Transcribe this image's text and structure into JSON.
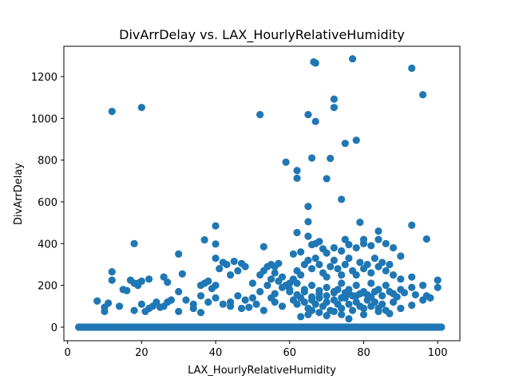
{
  "chart_data": {
    "type": "scatter",
    "title": "DivArrDelay vs. LAX_HourlyRelativeHumidity",
    "xlabel": "LAX_HourlyRelativeHumidity",
    "ylabel": "DivArrDelay",
    "xlim": [
      -1,
      106
    ],
    "ylim": [
      -65,
      1345
    ],
    "xticks": [
      0,
      20,
      40,
      60,
      80,
      100
    ],
    "yticks": [
      0,
      200,
      400,
      600,
      800,
      1000,
      1200
    ],
    "marker_color": "#1f77b4",
    "grid": false,
    "legend": "none",
    "baseline_band": {
      "x_from": 3,
      "x_to": 101,
      "y": 0
    },
    "points": [
      [
        12,
        1033
      ],
      [
        20,
        1052
      ],
      [
        52,
        1018
      ],
      [
        65,
        1018
      ],
      [
        67,
        985
      ],
      [
        66.5,
        1270
      ],
      [
        67,
        1265
      ],
      [
        77,
        1285
      ],
      [
        72,
        1092
      ],
      [
        72,
        1052
      ],
      [
        93,
        1240
      ],
      [
        96,
        1113
      ],
      [
        59,
        790
      ],
      [
        62,
        750
      ],
      [
        62,
        713
      ],
      [
        66,
        810
      ],
      [
        71,
        808
      ],
      [
        70,
        711
      ],
      [
        75,
        880
      ],
      [
        78,
        895
      ],
      [
        74,
        612
      ],
      [
        65,
        578
      ],
      [
        79,
        502
      ],
      [
        40,
        485
      ],
      [
        62,
        453
      ],
      [
        65,
        505
      ],
      [
        65,
        435
      ],
      [
        68,
        410
      ],
      [
        75,
        420
      ],
      [
        80,
        420
      ],
      [
        84,
        460
      ],
      [
        93,
        488
      ],
      [
        97,
        422
      ],
      [
        18,
        400
      ],
      [
        37,
        418
      ],
      [
        40,
        398
      ],
      [
        30,
        350
      ],
      [
        40,
        330
      ],
      [
        42,
        310
      ],
      [
        45,
        315
      ],
      [
        53,
        385
      ],
      [
        55,
        300
      ],
      [
        56,
        290
      ],
      [
        61,
        350
      ],
      [
        63,
        360
      ],
      [
        66,
        395
      ],
      [
        67,
        400
      ],
      [
        69,
        375
      ],
      [
        70,
        355
      ],
      [
        72,
        380
      ],
      [
        74,
        365
      ],
      [
        76,
        395
      ],
      [
        78,
        380
      ],
      [
        80,
        400
      ],
      [
        82,
        390
      ],
      [
        84,
        420
      ],
      [
        86,
        400
      ],
      [
        88,
        380
      ],
      [
        90,
        340
      ],
      [
        12,
        265
      ],
      [
        12,
        225
      ],
      [
        17,
        225
      ],
      [
        18,
        210
      ],
      [
        19,
        200
      ],
      [
        20,
        220
      ],
      [
        22,
        230
      ],
      [
        26,
        240
      ],
      [
        27,
        215
      ],
      [
        31,
        255
      ],
      [
        36,
        200
      ],
      [
        37,
        210
      ],
      [
        39,
        185
      ],
      [
        40,
        200
      ],
      [
        41,
        280
      ],
      [
        43,
        300
      ],
      [
        44,
        250
      ],
      [
        46,
        270
      ],
      [
        47,
        305
      ],
      [
        48,
        290
      ],
      [
        50,
        210
      ],
      [
        52,
        250
      ],
      [
        53,
        270
      ],
      [
        54,
        290
      ],
      [
        55,
        230
      ],
      [
        56,
        260
      ],
      [
        57,
        220
      ],
      [
        58,
        240
      ],
      [
        59,
        200
      ],
      [
        60,
        210
      ],
      [
        61,
        230
      ],
      [
        62,
        270
      ],
      [
        63,
        250
      ],
      [
        64,
        300
      ],
      [
        65,
        320
      ],
      [
        66,
        280
      ],
      [
        67,
        330
      ],
      [
        68,
        300
      ],
      [
        69,
        260
      ],
      [
        70,
        240
      ],
      [
        71,
        290
      ],
      [
        72,
        320
      ],
      [
        73,
        280
      ],
      [
        74,
        250
      ],
      [
        75,
        300
      ],
      [
        76,
        330
      ],
      [
        77,
        270
      ],
      [
        78,
        250
      ],
      [
        79,
        310
      ],
      [
        80,
        280
      ],
      [
        81,
        300
      ],
      [
        82,
        260
      ],
      [
        83,
        330
      ],
      [
        84,
        290
      ],
      [
        85,
        310
      ],
      [
        86,
        270
      ],
      [
        87,
        300
      ],
      [
        88,
        250
      ],
      [
        90,
        230
      ],
      [
        93,
        240
      ],
      [
        96,
        200
      ],
      [
        100,
        225
      ],
      [
        100,
        190
      ],
      [
        97,
        150
      ],
      [
        93,
        190
      ],
      [
        90,
        180
      ],
      [
        88,
        160
      ],
      [
        86,
        200
      ],
      [
        84,
        180
      ],
      [
        82,
        210
      ],
      [
        80,
        170
      ],
      [
        78,
        200
      ],
      [
        76,
        180
      ],
      [
        74,
        210
      ],
      [
        72,
        170
      ],
      [
        70,
        190
      ],
      [
        68,
        160
      ],
      [
        66,
        200
      ],
      [
        64,
        180
      ],
      [
        62,
        210
      ],
      [
        60,
        170
      ],
      [
        58,
        190
      ],
      [
        56,
        160
      ],
      [
        54,
        200
      ],
      [
        52,
        170
      ],
      [
        50,
        140
      ],
      [
        48,
        130
      ],
      [
        46,
        150
      ],
      [
        44,
        120
      ],
      [
        42,
        110
      ],
      [
        40,
        140
      ],
      [
        38,
        120
      ],
      [
        36,
        150
      ],
      [
        34,
        110
      ],
      [
        32,
        130
      ],
      [
        30,
        170
      ],
      [
        28,
        130
      ],
      [
        26,
        100
      ],
      [
        24,
        120
      ],
      [
        22,
        90
      ],
      [
        20,
        110
      ],
      [
        18,
        80
      ],
      [
        16,
        175
      ],
      [
        14,
        100
      ],
      [
        11,
        115
      ],
      [
        10,
        95
      ],
      [
        10,
        75
      ],
      [
        8,
        125
      ],
      [
        61,
        130
      ],
      [
        62,
        110
      ],
      [
        63,
        140
      ],
      [
        64,
        120
      ],
      [
        65,
        90
      ],
      [
        66,
        130
      ],
      [
        67,
        110
      ],
      [
        68,
        140
      ],
      [
        69,
        100
      ],
      [
        70,
        120
      ],
      [
        71,
        80
      ],
      [
        72,
        130
      ],
      [
        73,
        110
      ],
      [
        74,
        90
      ],
      [
        75,
        140
      ],
      [
        76,
        110
      ],
      [
        77,
        80
      ],
      [
        78,
        120
      ],
      [
        79,
        100
      ],
      [
        80,
        90
      ],
      [
        81,
        130
      ],
      [
        82,
        100
      ],
      [
        83,
        120
      ],
      [
        84,
        90
      ],
      [
        85,
        110
      ],
      [
        86,
        80
      ],
      [
        88,
        120
      ],
      [
        90,
        90
      ],
      [
        93,
        105
      ],
      [
        96,
        130
      ],
      [
        65,
        60
      ],
      [
        68,
        70
      ],
      [
        70,
        55
      ],
      [
        72,
        75
      ],
      [
        74,
        60
      ],
      [
        76,
        40
      ],
      [
        63,
        50
      ],
      [
        66,
        80
      ],
      [
        80,
        60
      ],
      [
        84,
        75
      ],
      [
        87,
        65
      ],
      [
        58,
        100
      ],
      [
        56,
        120
      ],
      [
        55,
        140
      ],
      [
        53,
        80
      ],
      [
        51,
        110
      ],
      [
        49,
        95
      ],
      [
        47,
        90
      ],
      [
        44,
        100
      ],
      [
        36,
        70
      ],
      [
        34,
        90
      ],
      [
        30,
        75
      ],
      [
        27,
        120
      ],
      [
        25,
        95
      ],
      [
        23,
        100
      ],
      [
        21,
        75
      ],
      [
        15,
        180
      ],
      [
        19,
        210
      ],
      [
        38,
        220
      ],
      [
        57,
        305
      ],
      [
        73,
        180
      ],
      [
        75,
        165
      ],
      [
        77,
        150
      ],
      [
        79,
        160
      ],
      [
        81,
        155
      ],
      [
        83,
        170
      ],
      [
        85,
        150
      ],
      [
        87,
        170
      ],
      [
        89,
        145
      ],
      [
        91,
        165
      ],
      [
        94,
        155
      ],
      [
        98,
        140
      ],
      [
        60,
        180
      ],
      [
        62,
        155
      ],
      [
        64,
        170
      ],
      [
        66,
        145
      ],
      [
        68,
        175
      ],
      [
        70,
        150
      ],
      [
        72,
        165
      ],
      [
        74,
        140
      ],
      [
        76,
        160
      ],
      [
        78,
        150
      ],
      [
        80,
        165
      ],
      [
        82,
        145
      ]
    ]
  }
}
